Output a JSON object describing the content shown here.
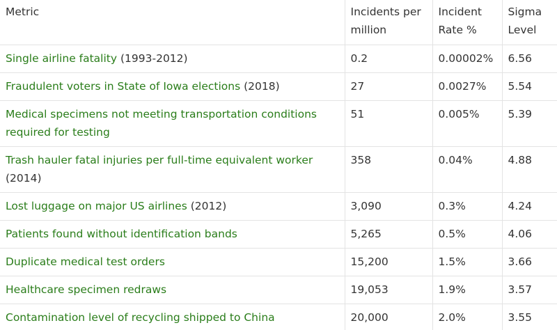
{
  "table": {
    "headers": [
      "Metric",
      "Incidents per million",
      "Incident Rate %",
      "Sigma Level"
    ],
    "rows": [
      {
        "metric": "Single airline fatality",
        "year": " (1993-2012)",
        "incidents": "0.2",
        "rate": "0.00002%",
        "sigma": "6.56"
      },
      {
        "metric": "Fraudulent voters in State of Iowa elections",
        "year": " (2018)",
        "incidents": "27",
        "rate": "0.0027%",
        "sigma": "5.54"
      },
      {
        "metric": "Medical specimens not meeting transportation conditions required for testing",
        "year": "",
        "incidents": "51",
        "rate": "0.005%",
        "sigma": "5.39"
      },
      {
        "metric": "Trash hauler fatal injuries per full-time equivalent worker",
        "year": " (2014)",
        "incidents": "358",
        "rate": "0.04%",
        "sigma": "4.88"
      },
      {
        "metric": "Lost luggage on major US airlines",
        "year": " (2012)",
        "incidents": "3,090",
        "rate": "0.3%",
        "sigma": "4.24"
      },
      {
        "metric": "Patients found without identification bands",
        "year": "",
        "incidents": "5,265",
        "rate": "0.5%",
        "sigma": "4.06"
      },
      {
        "metric": "Duplicate medical test orders",
        "year": "",
        "incidents": "15,200",
        "rate": "1.5%",
        "sigma": "3.66"
      },
      {
        "metric": "Healthcare specimen redraws",
        "year": "",
        "incidents": "19,053",
        "rate": "1.9%",
        "sigma": "3.57"
      },
      {
        "metric": "Contamination level of recycling shipped to China",
        "year": "",
        "incidents": "20,000",
        "rate": "2.0%",
        "sigma": "3.55"
      }
    ]
  },
  "colors": {
    "link": "#2a7d1a",
    "text": "#333333",
    "border": "#e3e3e3"
  }
}
